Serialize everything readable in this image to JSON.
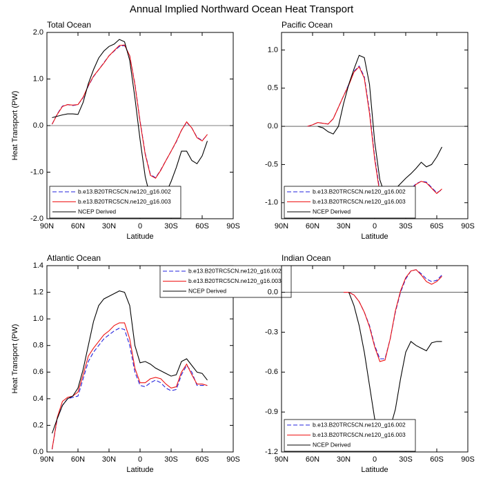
{
  "title": "Annual Implied Northward Ocean Heat Transport",
  "chart_data": [
    {
      "type": "line",
      "title": "Total Ocean",
      "xlabel": "Latitude",
      "ylabel": "Heat Transport (PW)",
      "legend": "lower left",
      "x": [
        85,
        80,
        75,
        70,
        65,
        60,
        55,
        50,
        45,
        40,
        35,
        30,
        25,
        20,
        15,
        10,
        5,
        0,
        -5,
        -10,
        -15,
        -20,
        -25,
        -30,
        -35,
        -40,
        -45,
        -50,
        -55,
        -60,
        -65
      ],
      "xlim": [
        90,
        -90
      ],
      "xticks": [
        {
          "value": 90,
          "label": "90N"
        },
        {
          "value": 60,
          "label": "60N"
        },
        {
          "value": 30,
          "label": "30N"
        },
        0,
        {
          "value": -30,
          "label": "30S"
        },
        {
          "value": -60,
          "label": "60S"
        },
        {
          "value": -90,
          "label": "90S"
        }
      ],
      "ylim": [
        -2,
        2
      ],
      "yticks": [
        {
          "value": -2,
          "label": "-2.0"
        },
        {
          "value": -1,
          "label": "-1.0"
        },
        {
          "value": 0,
          "label": "0.0"
        },
        {
          "value": 1,
          "label": "1.0"
        },
        {
          "value": 2,
          "label": "2.0"
        }
      ],
      "series": [
        {
          "name": "b.e13.B20TRC5CN.ne120_g16.002",
          "color": "#2222dd",
          "dash": true,
          "values": [
            0.03,
            0.25,
            0.42,
            0.45,
            0.43,
            0.45,
            0.6,
            0.85,
            1.05,
            1.2,
            1.35,
            1.5,
            1.6,
            1.7,
            1.72,
            1.5,
            0.9,
            0.1,
            -0.6,
            -1.05,
            -1.12,
            -0.95,
            -0.75,
            -0.55,
            -0.35,
            -0.1,
            0.07,
            -0.05,
            -0.25,
            -0.32,
            -0.2
          ]
        },
        {
          "name": "b.e13.B20TRC5CN.ne120_g16.003",
          "color": "#ee1111",
          "dash": false,
          "values": [
            0.03,
            0.24,
            0.41,
            0.45,
            0.44,
            0.45,
            0.61,
            0.86,
            1.06,
            1.2,
            1.34,
            1.5,
            1.61,
            1.72,
            1.73,
            1.5,
            0.88,
            0.08,
            -0.62,
            -1.07,
            -1.13,
            -0.96,
            -0.75,
            -0.55,
            -0.34,
            -0.1,
            0.08,
            -0.05,
            -0.26,
            -0.33,
            -0.19
          ]
        },
        {
          "name": "NCEP Derived",
          "color": "#000000",
          "dash": false,
          "values": [
            0.17,
            0.2,
            0.23,
            0.25,
            0.25,
            0.24,
            0.5,
            0.9,
            1.2,
            1.45,
            1.6,
            1.7,
            1.75,
            1.85,
            1.8,
            1.4,
            0.6,
            -0.3,
            -1.1,
            -1.55,
            -1.72,
            -1.62,
            -1.45,
            -1.2,
            -0.9,
            -0.55,
            -0.55,
            -0.75,
            -0.82,
            -0.65,
            -0.33
          ]
        }
      ]
    },
    {
      "type": "line",
      "title": "Pacific Ocean",
      "xlabel": "Latitude",
      "legend": "lower left",
      "x": [
        65,
        60,
        55,
        50,
        45,
        40,
        35,
        30,
        25,
        20,
        15,
        10,
        5,
        0,
        -5,
        -10,
        -15,
        -20,
        -25,
        -30,
        -35,
        -40,
        -45,
        -50,
        -55,
        -60,
        -65
      ],
      "xlim": [
        90,
        -90
      ],
      "xticks": [
        {
          "value": 90,
          "label": "90N"
        },
        {
          "value": 60,
          "label": "60N"
        },
        {
          "value": 30,
          "label": "30N"
        },
        0,
        {
          "value": -30,
          "label": "30S"
        },
        {
          "value": -60,
          "label": "60S"
        },
        {
          "value": -90,
          "label": "90S"
        }
      ],
      "ylim": [
        -1.21,
        1.23
      ],
      "yticks": [
        {
          "value": -1,
          "label": "-1.0"
        },
        -0.5,
        {
          "value": 0,
          "label": "0.0"
        },
        0.5,
        {
          "value": 1,
          "label": "1.0"
        }
      ],
      "series": [
        {
          "name": "b.e13.B20TRC5CN.ne120_g16.002",
          "color": "#2222dd",
          "dash": true,
          "values": [
            0,
            0.02,
            0.05,
            0.04,
            0.03,
            0.1,
            0.25,
            0.4,
            0.55,
            0.72,
            0.79,
            0.65,
            0.2,
            -0.4,
            -0.85,
            -1.1,
            -1.17,
            -1.1,
            -0.98,
            -0.9,
            -0.82,
            -0.75,
            -0.72,
            -0.73,
            -0.8,
            -0.87,
            -0.83
          ]
        },
        {
          "name": "b.e13.B20TRC5CN.ne120_g16.003",
          "color": "#ee1111",
          "dash": false,
          "values": [
            0,
            0.02,
            0.05,
            0.04,
            0.03,
            0.1,
            0.25,
            0.4,
            0.54,
            0.71,
            0.78,
            0.63,
            0.17,
            -0.43,
            -0.88,
            -1.13,
            -1.19,
            -1.12,
            -0.99,
            -0.91,
            -0.83,
            -0.76,
            -0.72,
            -0.74,
            -0.81,
            -0.88,
            -0.82
          ]
        },
        {
          "name": "NCEP Derived",
          "color": "#000000",
          "dash": false,
          "values": [
            null,
            null,
            0,
            -0.02,
            -0.07,
            -0.1,
            0,
            0.3,
            0.55,
            0.75,
            0.93,
            0.9,
            0.55,
            -0.2,
            -0.7,
            -0.9,
            -0.88,
            -0.82,
            -0.75,
            -0.68,
            -0.62,
            -0.55,
            -0.47,
            -0.53,
            -0.5,
            -0.4,
            -0.27
          ]
        }
      ]
    },
    {
      "type": "line",
      "title": "Atlantic Ocean",
      "xlabel": "Latitude",
      "ylabel": "Heat Transport (PW)",
      "legend": "upper right",
      "x": [
        85,
        80,
        75,
        70,
        65,
        60,
        55,
        50,
        45,
        40,
        35,
        30,
        25,
        20,
        15,
        10,
        5,
        0,
        -5,
        -10,
        -15,
        -20,
        -25,
        -30,
        -35,
        -40,
        -45,
        -50,
        -55,
        -60,
        -65
      ],
      "xlim": [
        90,
        -90
      ],
      "xticks": [
        {
          "value": 90,
          "label": "90N"
        },
        {
          "value": 60,
          "label": "60N"
        },
        {
          "value": 30,
          "label": "30N"
        },
        0,
        {
          "value": -30,
          "label": "30S"
        },
        {
          "value": -60,
          "label": "60S"
        },
        {
          "value": -90,
          "label": "90S"
        }
      ],
      "ylim": [
        0,
        1.4
      ],
      "yticks": [
        {
          "value": 0,
          "label": "0.0"
        },
        0.2,
        0.4,
        0.6,
        0.8,
        {
          "value": 1,
          "label": "1.0"
        },
        1.2,
        1.4
      ],
      "series": [
        {
          "name": "b.e13.B20TRC5CN.ne120_g16.002",
          "color": "#2222dd",
          "dash": true,
          "values": [
            0.02,
            0.25,
            0.35,
            0.4,
            0.41,
            0.42,
            0.55,
            0.68,
            0.75,
            0.8,
            0.85,
            0.88,
            0.91,
            0.93,
            0.92,
            0.8,
            0.6,
            0.5,
            0.49,
            0.52,
            0.54,
            0.52,
            0.48,
            0.46,
            0.47,
            0.58,
            0.65,
            0.6,
            0.5,
            0.5,
            0.5
          ]
        },
        {
          "name": "b.e13.B20TRC5CN.ne120_g16.003",
          "color": "#ee1111",
          "dash": false,
          "values": [
            0.02,
            0.26,
            0.38,
            0.41,
            0.42,
            0.45,
            0.58,
            0.72,
            0.78,
            0.83,
            0.88,
            0.91,
            0.95,
            0.97,
            0.97,
            0.85,
            0.63,
            0.52,
            0.52,
            0.55,
            0.56,
            0.55,
            0.51,
            0.48,
            0.49,
            0.6,
            0.66,
            0.58,
            0.51,
            0.51,
            0.5
          ]
        },
        {
          "name": "NCEP Derived",
          "color": "#000000",
          "dash": false,
          "values": [
            0.14,
            0.25,
            0.35,
            0.4,
            0.42,
            0.48,
            0.62,
            0.8,
            0.98,
            1.1,
            1.15,
            1.17,
            1.19,
            1.21,
            1.2,
            1.1,
            0.8,
            0.67,
            0.68,
            0.66,
            0.63,
            0.61,
            0.59,
            0.57,
            0.58,
            0.68,
            0.7,
            0.65,
            0.6,
            0.59,
            0.54
          ]
        }
      ]
    },
    {
      "type": "line",
      "title": "Indian Ocean",
      "xlabel": "Latitude",
      "legend": "lower left",
      "x": [
        30,
        25,
        20,
        15,
        10,
        5,
        0,
        -5,
        -10,
        -15,
        -20,
        -25,
        -30,
        -35,
        -40,
        -45,
        -50,
        -55,
        -60,
        -65
      ],
      "xlim": [
        90,
        -90
      ],
      "xticks": [
        {
          "value": 90,
          "label": "90N"
        },
        {
          "value": 60,
          "label": "60N"
        },
        {
          "value": 30,
          "label": "30N"
        },
        0,
        {
          "value": -30,
          "label": "30S"
        },
        {
          "value": -60,
          "label": "60S"
        },
        {
          "value": -90,
          "label": "90S"
        }
      ],
      "ylim": [
        -1.2,
        0.2
      ],
      "yticks": [
        -1.2,
        -0.9,
        -0.6,
        -0.3,
        {
          "value": 0,
          "label": "0.0"
        }
      ],
      "series": [
        {
          "name": "b.e13.B20TRC5CN.ne120_g16.002",
          "color": "#2222dd",
          "dash": true,
          "values": [
            0,
            0,
            -0.02,
            -0.07,
            -0.15,
            -0.25,
            -0.4,
            -0.5,
            -0.5,
            -0.35,
            -0.15,
            0,
            0.1,
            0.16,
            0.17,
            0.14,
            0.1,
            0.08,
            0.09,
            0.13
          ]
        },
        {
          "name": "b.e13.B20TRC5CN.ne120_g16.003",
          "color": "#ee1111",
          "dash": false,
          "values": [
            0,
            0,
            -0.02,
            -0.07,
            -0.15,
            -0.26,
            -0.41,
            -0.52,
            -0.51,
            -0.35,
            -0.14,
            0.01,
            0.11,
            0.16,
            0.17,
            0.13,
            0.08,
            0.06,
            0.08,
            0.12
          ]
        },
        {
          "name": "NCEP Derived",
          "color": "#000000",
          "dash": false,
          "values": [
            null,
            0,
            -0.1,
            -0.25,
            -0.45,
            -0.7,
            -0.95,
            -1.03,
            -1.08,
            -1.02,
            -0.88,
            -0.65,
            -0.45,
            -0.37,
            -0.4,
            -0.42,
            -0.44,
            -0.38,
            -0.37,
            -0.37
          ]
        }
      ]
    }
  ]
}
